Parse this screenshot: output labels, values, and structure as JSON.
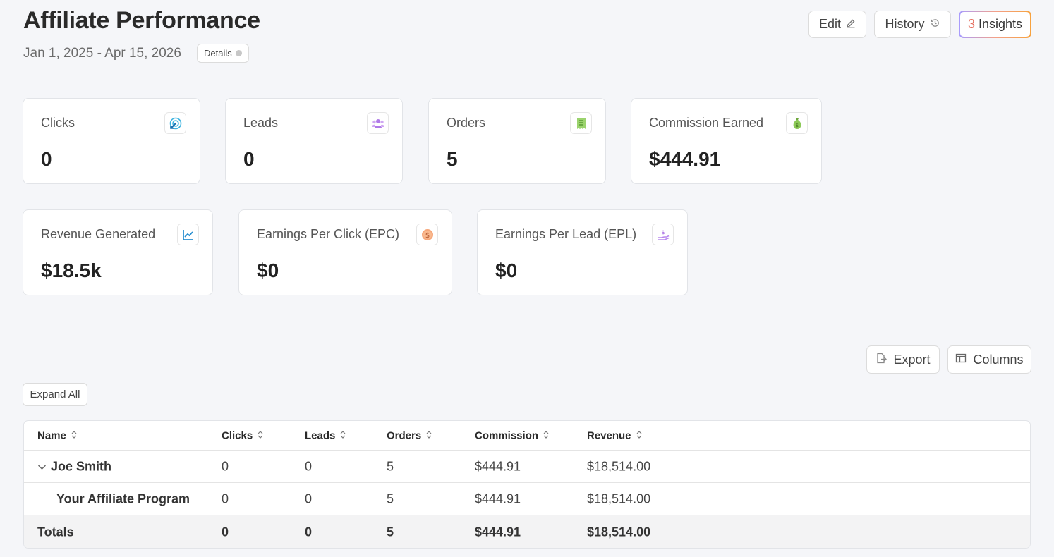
{
  "header": {
    "title": "Affiliate Performance",
    "date_range": "Jan 1, 2025 - Apr 15, 2026",
    "details_label": "Details",
    "edit_label": "Edit",
    "history_label": "History",
    "insights_count": "3",
    "insights_label": "Insights"
  },
  "stats": {
    "clicks": {
      "label": "Clicks",
      "value": "0",
      "icon": "target-click-icon"
    },
    "leads": {
      "label": "Leads",
      "value": "0",
      "icon": "users-icon"
    },
    "orders": {
      "label": "Orders",
      "value": "5",
      "icon": "receipt-icon"
    },
    "commission": {
      "label": "Commission Earned",
      "value": "$444.91",
      "icon": "money-bag-icon"
    },
    "revenue": {
      "label": "Revenue Generated",
      "value": "$18.5k",
      "icon": "trend-chart-icon"
    },
    "epc": {
      "label": "Earnings Per Click (EPC)",
      "value": "$0",
      "icon": "dollar-coin-icon"
    },
    "epl": {
      "label": "Earnings Per Lead (EPL)",
      "value": "$0",
      "icon": "hand-dollar-icon"
    }
  },
  "toolbar": {
    "export_label": "Export",
    "columns_label": "Columns",
    "expand_label": "Expand All"
  },
  "table": {
    "headers": [
      "Name",
      "Clicks",
      "Leads",
      "Orders",
      "Commission",
      "Revenue"
    ],
    "rows": [
      {
        "name": "Joe Smith",
        "clicks": "0",
        "leads": "0",
        "orders": "5",
        "commission": "$444.91",
        "revenue": "$18,514.00"
      },
      {
        "name": "Your Affiliate Program",
        "clicks": "0",
        "leads": "0",
        "orders": "5",
        "commission": "$444.91",
        "revenue": "$18,514.00"
      }
    ],
    "totals": {
      "name": "Totals",
      "clicks": "0",
      "leads": "0",
      "orders": "5",
      "commission": "$444.91",
      "revenue": "$18,514.00"
    }
  },
  "colors": {
    "background": "#f5f6f9",
    "insights_gradient": [
      "#a79cff",
      "#f7a23d"
    ]
  }
}
